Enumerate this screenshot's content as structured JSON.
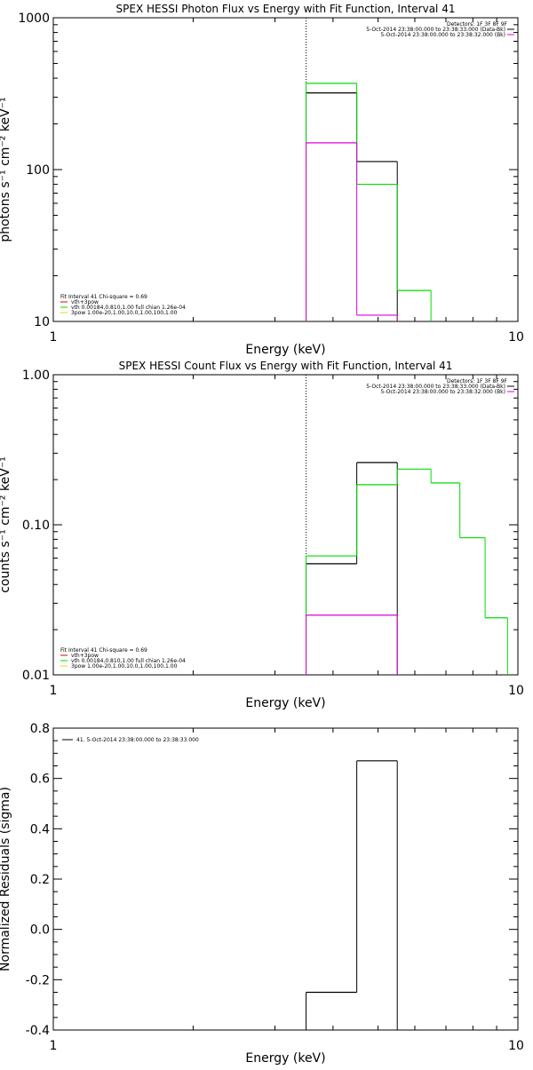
{
  "colors": {
    "black": "#000000",
    "green": "#00dd00",
    "magenta": "#dd00dd",
    "red": "#dd0000",
    "yellow": "#dddd00"
  },
  "chart_data": [
    {
      "type": "line",
      "title": "SPEX HESSI Photon Flux vs Energy with Fit Function, Interval 41",
      "xlabel": "Energy (keV)",
      "ylabel": "photons s⁻¹ cm⁻² keV⁻¹",
      "xscale": "log",
      "yscale": "log",
      "xlim": [
        1,
        10
      ],
      "ylim": [
        10,
        1000
      ],
      "xticklabels": [
        "1",
        "10"
      ],
      "yticklabels": [
        "10",
        "100",
        "1000"
      ],
      "ytickvalues": [
        10,
        100,
        1000
      ],
      "vline": 3.5,
      "legend_top_right": [
        {
          "text": "Detectors: 1F 3F 8F 9F",
          "color": "#000000"
        },
        {
          "text": "5-Oct-2014 23:38:00.000 to 23:38:33.000 (Data-Bk)",
          "color": "#000000"
        },
        {
          "text": "5-Oct-2014 23:38:00.000 to 23:38:32.000 (Bk)",
          "color": "#dd00dd"
        }
      ],
      "legend_bottom_left": [
        {
          "text": "Fit Interval 41   Chi-square = 0.69",
          "color": "#000000"
        },
        {
          "text": "vth+3pow",
          "color": "#dd0000"
        },
        {
          "text": "vth 0.00184,0.810,1.00  full chian 1.26e-04",
          "color": "#00dd00"
        },
        {
          "text": "3pow 1.00e-20,1.00,10.0,1.00,100,1.00",
          "color": "#dddd00"
        }
      ],
      "series": [
        {
          "color": "#000000",
          "bins": [
            [
              3.5,
              4.5,
              320
            ],
            [
              4.5,
              5.5,
              113
            ]
          ]
        },
        {
          "color": "#00dd00",
          "bins": [
            [
              3.5,
              4.5,
              370
            ],
            [
              4.5,
              5.5,
              80
            ],
            [
              5.5,
              6.5,
              16
            ]
          ]
        },
        {
          "color": "#dd00dd",
          "bins": [
            [
              3.5,
              4.5,
              150
            ],
            [
              4.5,
              5.5,
              11
            ]
          ]
        }
      ]
    },
    {
      "type": "line",
      "title": "SPEX HESSI Count Flux vs Energy with Fit Function, Interval 41",
      "xlabel": "Energy (keV)",
      "ylabel": "counts s⁻¹ cm⁻² keV⁻¹",
      "xscale": "log",
      "yscale": "log",
      "xlim": [
        1,
        10
      ],
      "ylim": [
        0.01,
        1
      ],
      "xticklabels": [
        "1",
        "10"
      ],
      "yticklabels": [
        "0.01",
        "0.10",
        "1.00"
      ],
      "ytickvalues": [
        0.01,
        0.1,
        1
      ],
      "vline": 3.5,
      "legend_top_right": [
        {
          "text": "Detectors: 1F 3F 8F 9F",
          "color": "#000000"
        },
        {
          "text": "5-Oct-2014 23:38:00.000 to 23:38:33.000 (Data-Bk)",
          "color": "#000000"
        },
        {
          "text": "5-Oct-2014 23:38:00.000 to 23:38:32.000 (Bk)",
          "color": "#dd00dd"
        }
      ],
      "legend_bottom_left": [
        {
          "text": "Fit Interval 41   Chi-square = 0.69",
          "color": "#000000"
        },
        {
          "text": "vth+3pow",
          "color": "#dd0000"
        },
        {
          "text": "vth 0.00184,0.810,1.00  full chian 1.26e-04",
          "color": "#00dd00"
        },
        {
          "text": "3pow 1.00e-20,1.00,10.0,1.00,100,1.00",
          "color": "#dddd00"
        }
      ],
      "series": [
        {
          "color": "#000000",
          "bins": [
            [
              3.5,
              4.5,
              0.055
            ],
            [
              4.5,
              5.5,
              0.26
            ]
          ]
        },
        {
          "color": "#00dd00",
          "bins": [
            [
              3.5,
              4.5,
              0.062
            ],
            [
              4.5,
              5.5,
              0.185
            ],
            [
              5.5,
              6.5,
              0.235
            ],
            [
              6.5,
              7.5,
              0.19
            ],
            [
              7.5,
              8.5,
              0.082
            ],
            [
              8.5,
              9.5,
              0.024
            ]
          ]
        },
        {
          "color": "#dd00dd",
          "bins": [
            [
              3.5,
              4.5,
              0.025
            ],
            [
              4.5,
              5.5,
              0.025
            ]
          ]
        }
      ]
    },
    {
      "type": "line",
      "title": "",
      "xlabel": "Energy (keV)",
      "ylabel": "Normalized Residuals (sigma)",
      "xscale": "log",
      "yscale": "linear",
      "xlim": [
        1,
        10
      ],
      "ylim": [
        -0.4,
        0.8
      ],
      "xticklabels": [
        "1",
        "10"
      ],
      "yticklabels": [
        "-0.4",
        "-0.2",
        "0.0",
        "0.2",
        "0.4",
        "0.6",
        "0.8"
      ],
      "ytickvalues": [
        -0.4,
        -0.2,
        0,
        0.2,
        0.4,
        0.6,
        0.8
      ],
      "legend_top_left": [
        {
          "text": "41.  5-Oct-2014 23:38:00.000 to 23:38:33.000",
          "color": "#000000"
        }
      ],
      "series": [
        {
          "color": "#000000",
          "bins": [
            [
              3.5,
              4.5,
              -0.25
            ],
            [
              4.5,
              5.5,
              0.67
            ]
          ]
        }
      ]
    }
  ]
}
